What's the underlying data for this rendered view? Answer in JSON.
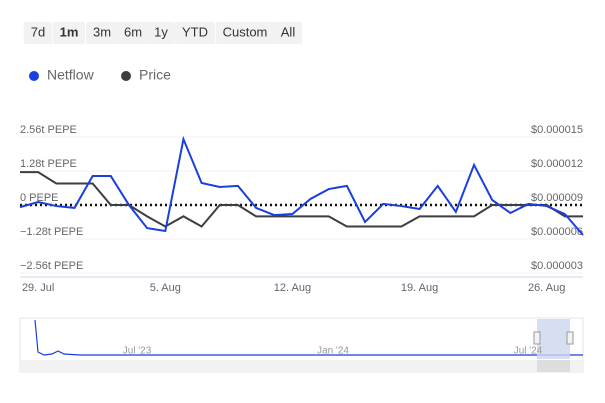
{
  "range_buttons": [
    "7d",
    "1m",
    "3m",
    "6m",
    "1y",
    "YTD",
    "Custom",
    "All"
  ],
  "selected_button": 1,
  "chart_data": {
    "type": "line",
    "categories": [
      null,
      "29. Jul",
      null,
      null,
      null,
      null,
      null,
      null,
      "5. Aug",
      null,
      null,
      null,
      null,
      null,
      null,
      "12. Aug",
      null,
      null,
      null,
      null,
      null,
      null,
      "19. Aug",
      null,
      null,
      null,
      null,
      null,
      null,
      "26. Aug",
      null,
      null
    ],
    "series": [
      {
        "name": "Netflow",
        "color": "#1a3fe0",
        "values": [
          -0.08,
          0.11,
          -0.04,
          -0.11,
          1.09,
          1.09,
          0,
          -0.87,
          -0.98,
          2.48,
          0.83,
          0.68,
          0.72,
          -0.11,
          -0.38,
          -0.34,
          0.23,
          0.6,
          0.72,
          -0.64,
          0.04,
          -0.04,
          -0.15,
          0.72,
          -0.26,
          1.51,
          0.19,
          -0.3,
          0.04,
          -0.04,
          -0.34,
          -1.13
        ]
      },
      {
        "name": "Price",
        "color": "#3a3f44",
        "axis": "y2",
        "values": [
          1.19e-05,
          1.19e-05,
          1.09e-05,
          1.09e-05,
          1.09e-05,
          9e-06,
          9e-06,
          8e-06,
          7.1e-06,
          8e-06,
          7.1e-06,
          9e-06,
          9e-06,
          8e-06,
          8e-06,
          8e-06,
          8e-06,
          8e-06,
          7.1e-06,
          7.1e-06,
          7.1e-06,
          7.1e-06,
          8e-06,
          8e-06,
          8e-06,
          8e-06,
          9e-06,
          9e-06,
          9e-06,
          9e-06,
          8e-06,
          8e-06
        ]
      }
    ],
    "ylim": [
      -2.56,
      2.56
    ],
    "yticks": [
      {
        "value": 2.56,
        "label": "2.56t PEPE"
      },
      {
        "value": 1.28,
        "label": "1.28t PEPE"
      },
      {
        "value": 0,
        "label": "0 PEPE"
      },
      {
        "value": -1.28,
        "label": "−1.28t PEPE"
      },
      {
        "value": -2.56,
        "label": "−2.56t PEPE"
      }
    ],
    "y2lim": [
      3e-06,
      1.5e-05
    ],
    "y2ticks": [
      {
        "value": 1.5e-05,
        "label": "$0.000015"
      },
      {
        "value": 1.2e-05,
        "label": "$0.000012"
      },
      {
        "value": 9e-06,
        "label": "$0.000009"
      },
      {
        "value": 6e-06,
        "label": "$0.000006"
      },
      {
        "value": 3e-06,
        "label": "$0.000003"
      }
    ],
    "zero_line": true,
    "legend": "top-left"
  },
  "navigator": {
    "labels": [
      "Jul '23",
      "Jan '24",
      "Jul '24"
    ]
  }
}
